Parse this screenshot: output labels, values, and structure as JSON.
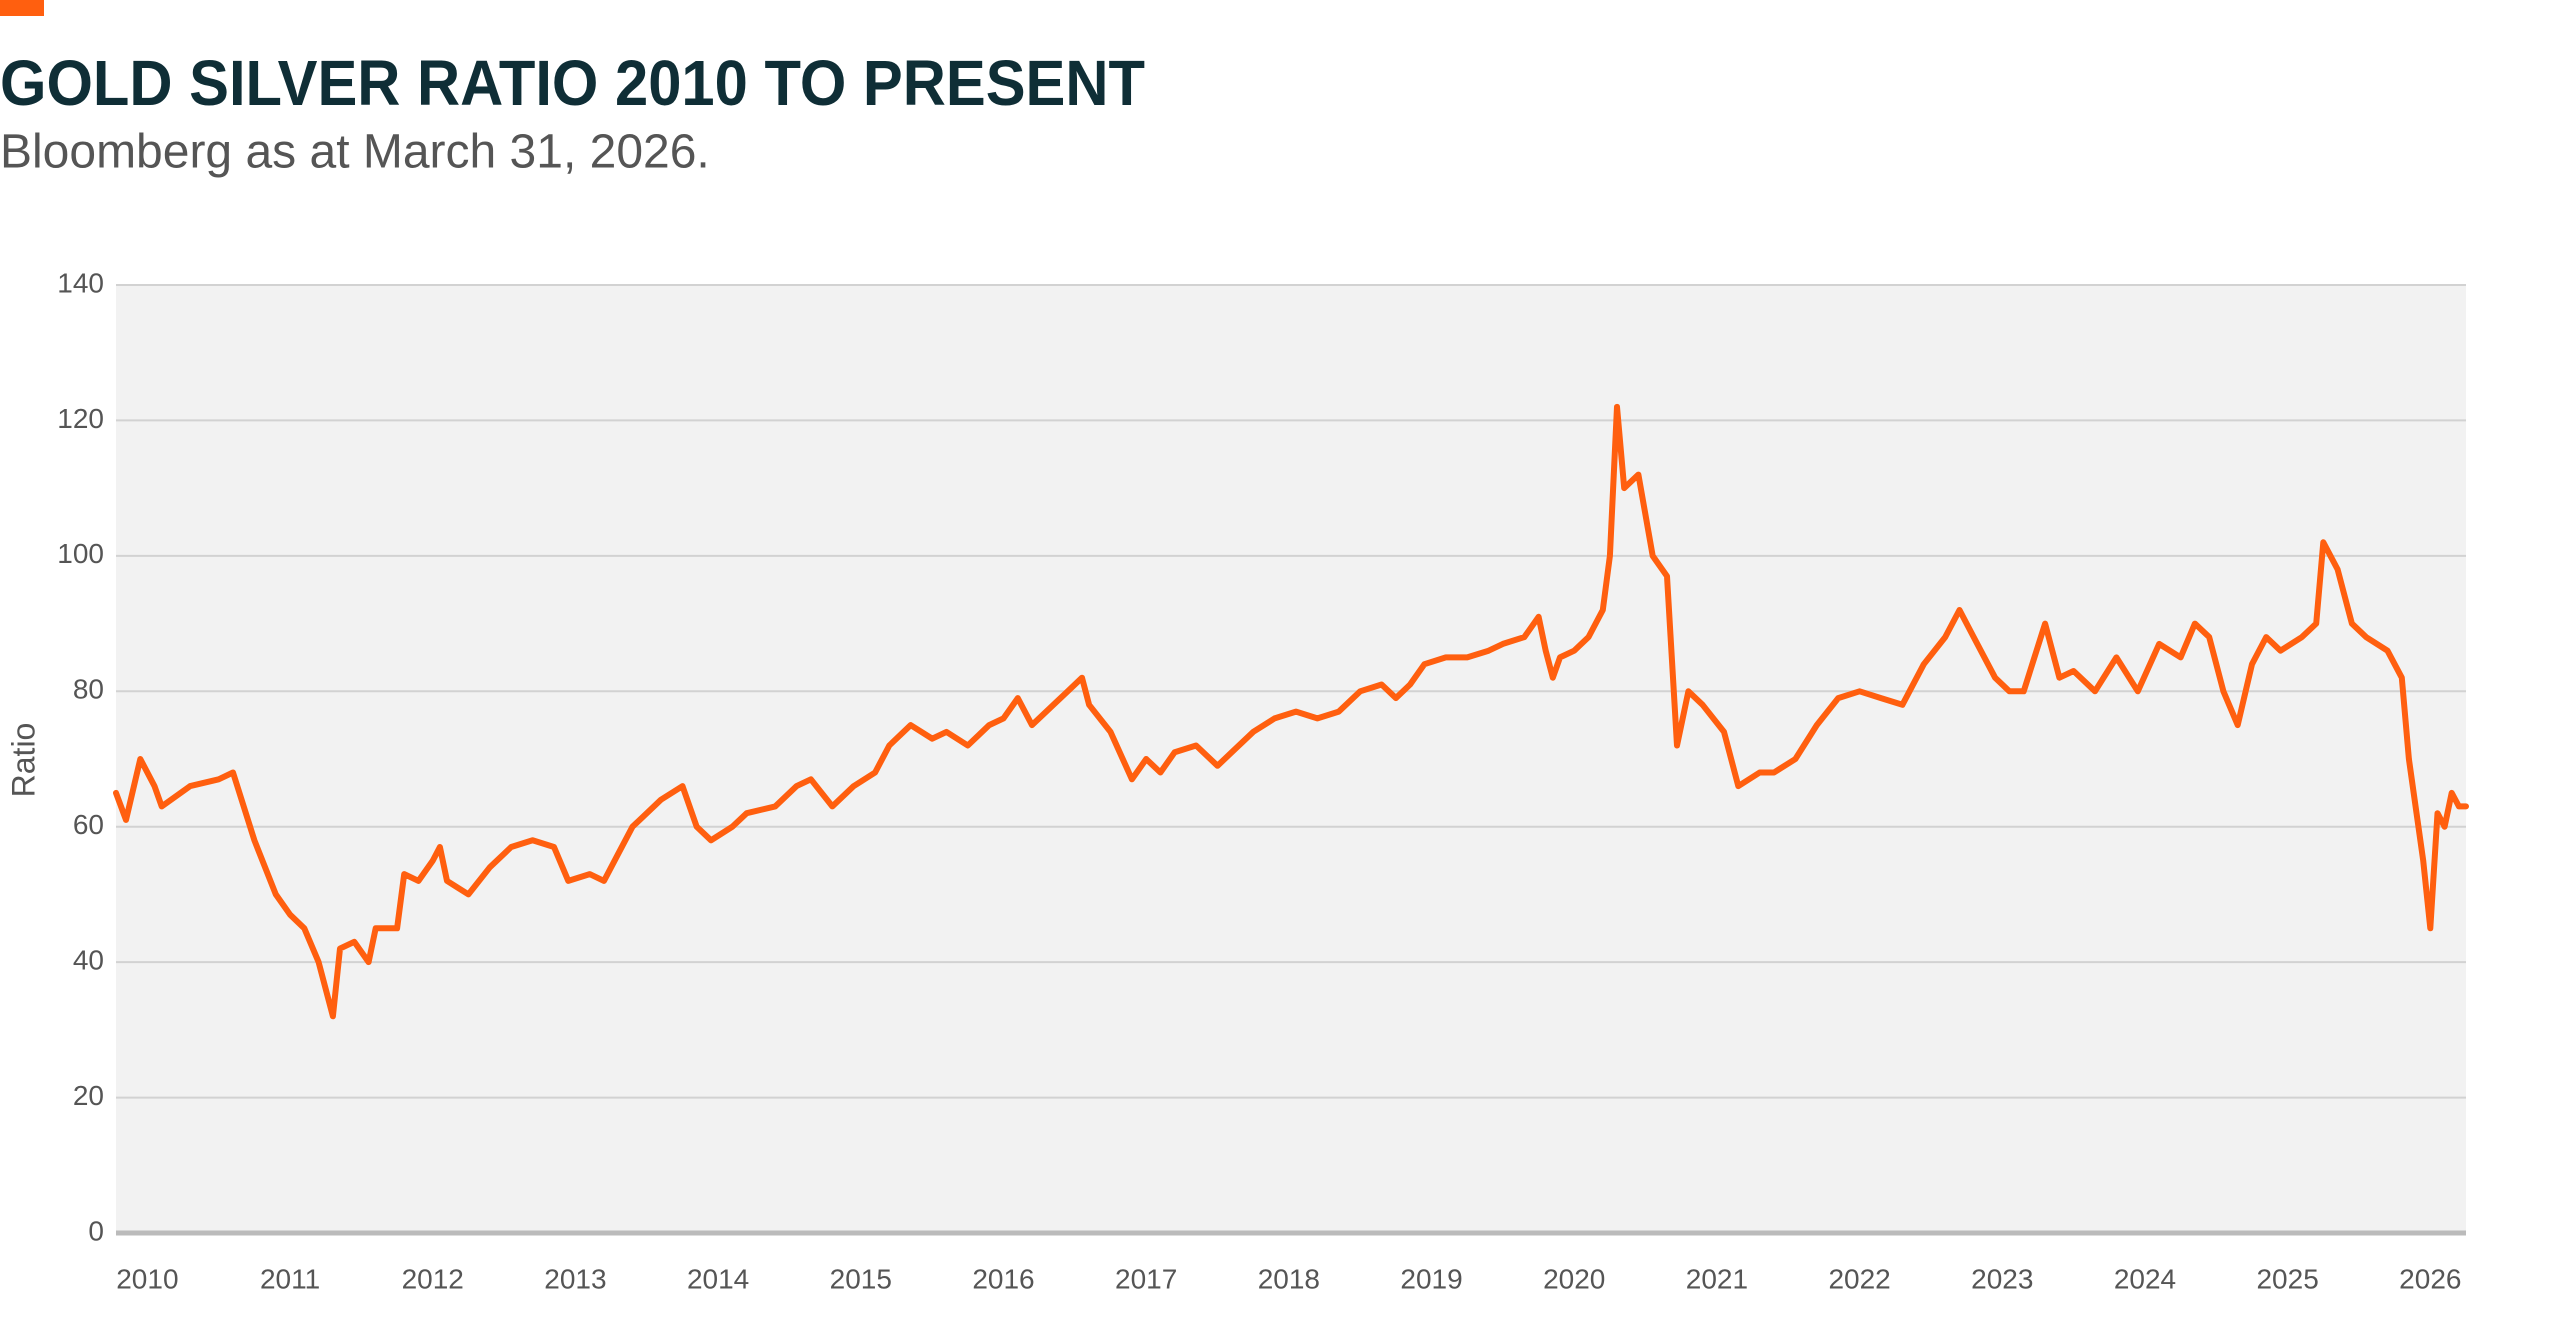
{
  "chart_data": {
    "type": "line",
    "title": "GOLD SILVER RATIO 2010 TO PRESENT",
    "subtitle": "Bloomberg as at March 31, 2026.",
    "y_label": "Ratio",
    "color": "#ff5f0f",
    "grid": true,
    "xlim": [
      2009.78,
      2026.25
    ],
    "xticks": [
      2010,
      2011,
      2012,
      2013,
      2014,
      2015,
      2016,
      2017,
      2018,
      2019,
      2020,
      2021,
      2022,
      2023,
      2024,
      2025,
      2026
    ],
    "ylim": [
      0,
      140
    ],
    "yticks": [
      0,
      20,
      40,
      60,
      80,
      100,
      120,
      140
    ],
    "x": [
      2009.78,
      2009.85,
      2009.95,
      2010.05,
      2010.1,
      2010.3,
      2010.5,
      2010.6,
      2010.75,
      2010.9,
      2011.0,
      2011.1,
      2011.2,
      2011.3,
      2011.35,
      2011.45,
      2011.55,
      2011.6,
      2011.75,
      2011.8,
      2011.9,
      2012.0,
      2012.05,
      2012.1,
      2012.25,
      2012.4,
      2012.55,
      2012.7,
      2012.85,
      2012.95,
      2013.1,
      2013.2,
      2013.3,
      2013.4,
      2013.5,
      2013.6,
      2013.75,
      2013.85,
      2013.95,
      2014.1,
      2014.2,
      2014.4,
      2014.55,
      2014.65,
      2014.8,
      2014.95,
      2015.1,
      2015.2,
      2015.35,
      2015.5,
      2015.6,
      2015.75,
      2015.9,
      2016.0,
      2016.1,
      2016.2,
      2016.35,
      2016.45,
      2016.55,
      2016.6,
      2016.75,
      2016.9,
      2017.0,
      2017.1,
      2017.2,
      2017.35,
      2017.5,
      2017.6,
      2017.75,
      2017.9,
      2018.05,
      2018.2,
      2018.35,
      2018.5,
      2018.65,
      2018.75,
      2018.85,
      2018.95,
      2019.1,
      2019.25,
      2019.4,
      2019.5,
      2019.65,
      2019.75,
      2019.8,
      2019.85,
      2019.9,
      2020.0,
      2020.1,
      2020.2,
      2020.25,
      2020.3,
      2020.35,
      2020.45,
      2020.55,
      2020.65,
      2020.72,
      2020.8,
      2020.9,
      2021.05,
      2021.15,
      2021.3,
      2021.4,
      2021.55,
      2021.7,
      2021.85,
      2022.0,
      2022.15,
      2022.3,
      2022.45,
      2022.6,
      2022.7,
      2022.8,
      2022.95,
      2023.05,
      2023.15,
      2023.3,
      2023.4,
      2023.5,
      2023.65,
      2023.8,
      2023.95,
      2024.1,
      2024.25,
      2024.35,
      2024.45,
      2024.55,
      2024.65,
      2024.75,
      2024.85,
      2024.95,
      2025.1,
      2025.2,
      2025.25,
      2025.35,
      2025.45,
      2025.55,
      2025.7,
      2025.8,
      2025.85,
      2025.95,
      2026.0,
      2026.05,
      2026.1,
      2026.15,
      2026.2,
      2026.25
    ],
    "values": [
      65,
      61,
      70,
      66,
      63,
      66,
      67,
      68,
      58,
      50,
      47,
      45,
      40,
      32,
      42,
      43,
      40,
      45,
      45,
      53,
      52,
      55,
      57,
      52,
      50,
      54,
      57,
      58,
      57,
      52,
      53,
      52,
      56,
      60,
      62,
      64,
      66,
      60,
      58,
      60,
      62,
      63,
      66,
      67,
      63,
      66,
      68,
      72,
      75,
      73,
      74,
      72,
      75,
      76,
      79,
      75,
      78,
      80,
      82,
      78,
      74,
      67,
      70,
      68,
      71,
      72,
      69,
      71,
      74,
      76,
      77,
      76,
      77,
      80,
      81,
      79,
      81,
      84,
      85,
      85,
      86,
      87,
      88,
      91,
      86,
      82,
      85,
      86,
      88,
      92,
      100,
      122,
      110,
      112,
      100,
      97,
      72,
      80,
      78,
      74,
      66,
      68,
      68,
      70,
      75,
      79,
      80,
      79,
      78,
      84,
      88,
      92,
      88,
      82,
      80,
      80,
      90,
      82,
      83,
      80,
      85,
      80,
      87,
      85,
      90,
      88,
      80,
      75,
      84,
      88,
      86,
      88,
      90,
      102,
      98,
      90,
      88,
      86,
      82,
      70,
      55,
      45,
      62,
      60,
      65,
      63,
      63
    ]
  }
}
